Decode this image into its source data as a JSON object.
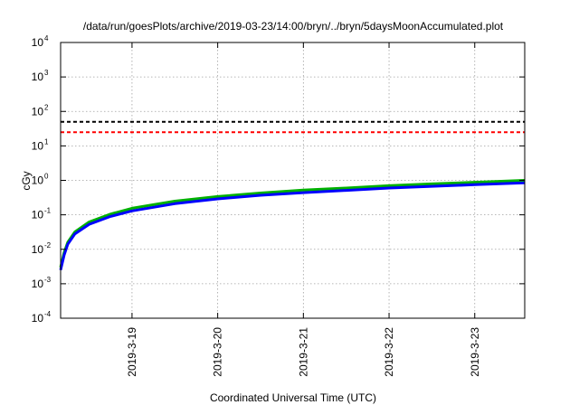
{
  "chart_data": {
    "type": "line",
    "title": "/data/run/goesPlots/archive/2019-03-23/14:00/bryn/../bryn/5daysMoonAccumulated.plot",
    "xlabel": "Coordinated Universal Time (UTC)",
    "ylabel": "cGy",
    "y_scale": "log",
    "ylim": [
      0.0001,
      10000
    ],
    "y_ticks": [
      {
        "value": 0.0001,
        "base": "10",
        "exp": "-4"
      },
      {
        "value": 0.001,
        "base": "10",
        "exp": "-3"
      },
      {
        "value": 0.01,
        "base": "10",
        "exp": "-2"
      },
      {
        "value": 0.1,
        "base": "10",
        "exp": "-1"
      },
      {
        "value": 1,
        "base": "10",
        "exp": "0"
      },
      {
        "value": 10,
        "base": "10",
        "exp": "1"
      },
      {
        "value": 100,
        "base": "10",
        "exp": "2"
      },
      {
        "value": 1000,
        "base": "10",
        "exp": "3"
      },
      {
        "value": 10000,
        "base": "10",
        "exp": "4"
      }
    ],
    "xlim": [
      "2019-03-18T04:00",
      "2019-03-23T14:00"
    ],
    "x_ticks": [
      {
        "value": "2019-03-19T00:00",
        "label": "2019-3-19"
      },
      {
        "value": "2019-03-20T00:00",
        "label": "2019-3-20"
      },
      {
        "value": "2019-03-21T00:00",
        "label": "2019-3-21"
      },
      {
        "value": "2019-03-22T00:00",
        "label": "2019-3-22"
      },
      {
        "value": "2019-03-23T00:00",
        "label": "2019-3-23"
      }
    ],
    "grid": true,
    "thresholds": [
      {
        "y": 50,
        "color": "#000000",
        "style": "dashed"
      },
      {
        "y": 25,
        "color": "#ff0000",
        "style": "dashed"
      }
    ],
    "series": [
      {
        "color": "#00b000",
        "x": [
          "2019-03-18T04:00",
          "2019-03-18T05:00",
          "2019-03-18T06:00",
          "2019-03-18T08:00",
          "2019-03-18T12:00",
          "2019-03-18T18:00",
          "2019-03-19T00:00",
          "2019-03-19T12:00",
          "2019-03-20T00:00",
          "2019-03-20T12:00",
          "2019-03-21T00:00",
          "2019-03-21T12:00",
          "2019-03-22T00:00",
          "2019-03-22T12:00",
          "2019-03-23T00:00",
          "2019-03-23T14:00"
        ],
        "values": [
          0.003,
          0.008,
          0.016,
          0.032,
          0.062,
          0.105,
          0.155,
          0.25,
          0.34,
          0.43,
          0.52,
          0.6,
          0.7,
          0.79,
          0.88,
          1.0
        ]
      },
      {
        "color": "#0000ff",
        "x": [
          "2019-03-18T04:00",
          "2019-03-18T05:00",
          "2019-03-18T06:00",
          "2019-03-18T08:00",
          "2019-03-18T12:00",
          "2019-03-18T18:00",
          "2019-03-19T00:00",
          "2019-03-19T12:00",
          "2019-03-20T00:00",
          "2019-03-20T12:00",
          "2019-03-21T00:00",
          "2019-03-21T12:00",
          "2019-03-22T00:00",
          "2019-03-22T12:00",
          "2019-03-23T00:00",
          "2019-03-23T14:00"
        ],
        "values": [
          0.0025,
          0.0068,
          0.014,
          0.028,
          0.053,
          0.09,
          0.13,
          0.21,
          0.29,
          0.37,
          0.44,
          0.51,
          0.6,
          0.67,
          0.75,
          0.85
        ]
      }
    ]
  }
}
